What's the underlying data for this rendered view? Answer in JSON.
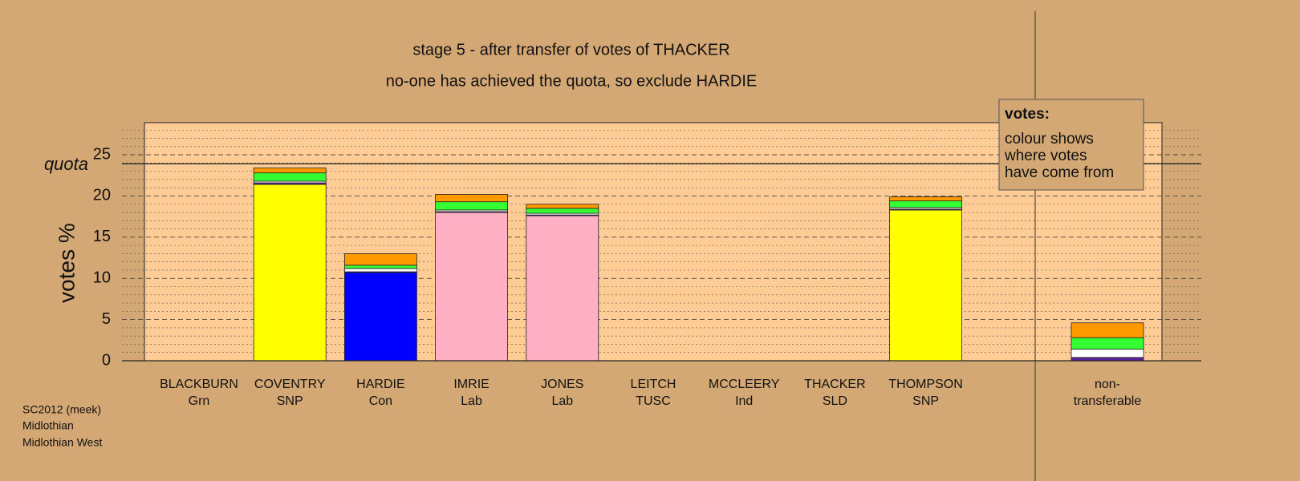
{
  "chart_data": {
    "type": "stacked-bar",
    "title": "stage 5 - after transfer of votes of THACKER",
    "subtitle": "no-one has achieved the quota, so exclude HARDIE",
    "y_label": "votes %",
    "quota_label": "quota",
    "quota": 23.9,
    "categories": [
      "BLACKBURN",
      "COVENTRY",
      "HARDIE",
      "IMRIE",
      "JONES",
      "LEITCH",
      "MCCLEERY",
      "THACKER",
      "THOMPSON",
      null,
      "non-"
    ],
    "category_sublabels": [
      "Grn",
      "SNP",
      "Con",
      "Lab",
      "Lab",
      "TUSC",
      "Ind",
      "SLD",
      "SNP",
      null,
      "transferable"
    ],
    "series": [
      {
        "colors": [
          null,
          "#ffff00",
          "#0000ff",
          "#ffb0c4",
          "#ffb0c4",
          null,
          null,
          null,
          "#ffff00",
          null,
          null
        ],
        "values": [
          0,
          21.4,
          10.7,
          18.0,
          17.6,
          0,
          0,
          0,
          18.3,
          null,
          0
        ]
      },
      {
        "color": "#5a1ea0",
        "values": [
          0,
          0.2,
          0.1,
          0.1,
          0.1,
          0,
          0,
          0,
          0.1,
          null,
          0.4
        ]
      },
      {
        "color": "#ffffff",
        "values": [
          0,
          0.2,
          0.4,
          0.2,
          0.2,
          0,
          0,
          0,
          0.2,
          null,
          1.0
        ]
      },
      {
        "color": "#33ff33",
        "values": [
          0,
          1.0,
          0.4,
          1.0,
          0.6,
          0,
          0,
          0,
          0.8,
          null,
          1.4
        ]
      },
      {
        "color": "#ff9900",
        "values": [
          0,
          0.6,
          1.4,
          0.9,
          0.5,
          0,
          0,
          0,
          0.5,
          null,
          1.8
        ]
      }
    ],
    "ylim": [
      0,
      28.9
    ],
    "yticks": [
      0,
      5,
      10,
      15,
      20,
      25
    ],
    "minor_yticks": [
      1,
      2,
      3,
      4,
      6,
      7,
      8,
      9,
      11,
      12,
      13,
      14,
      16,
      17,
      18,
      19,
      21,
      22,
      23,
      24,
      26,
      27,
      28
    ],
    "grid": true,
    "note": {
      "heading": "votes:",
      "lines": [
        "colour shows",
        "where votes",
        "have come from"
      ]
    },
    "footer": [
      "SC2012 (meek)",
      "Midlothian",
      "Midlothian West"
    ]
  }
}
